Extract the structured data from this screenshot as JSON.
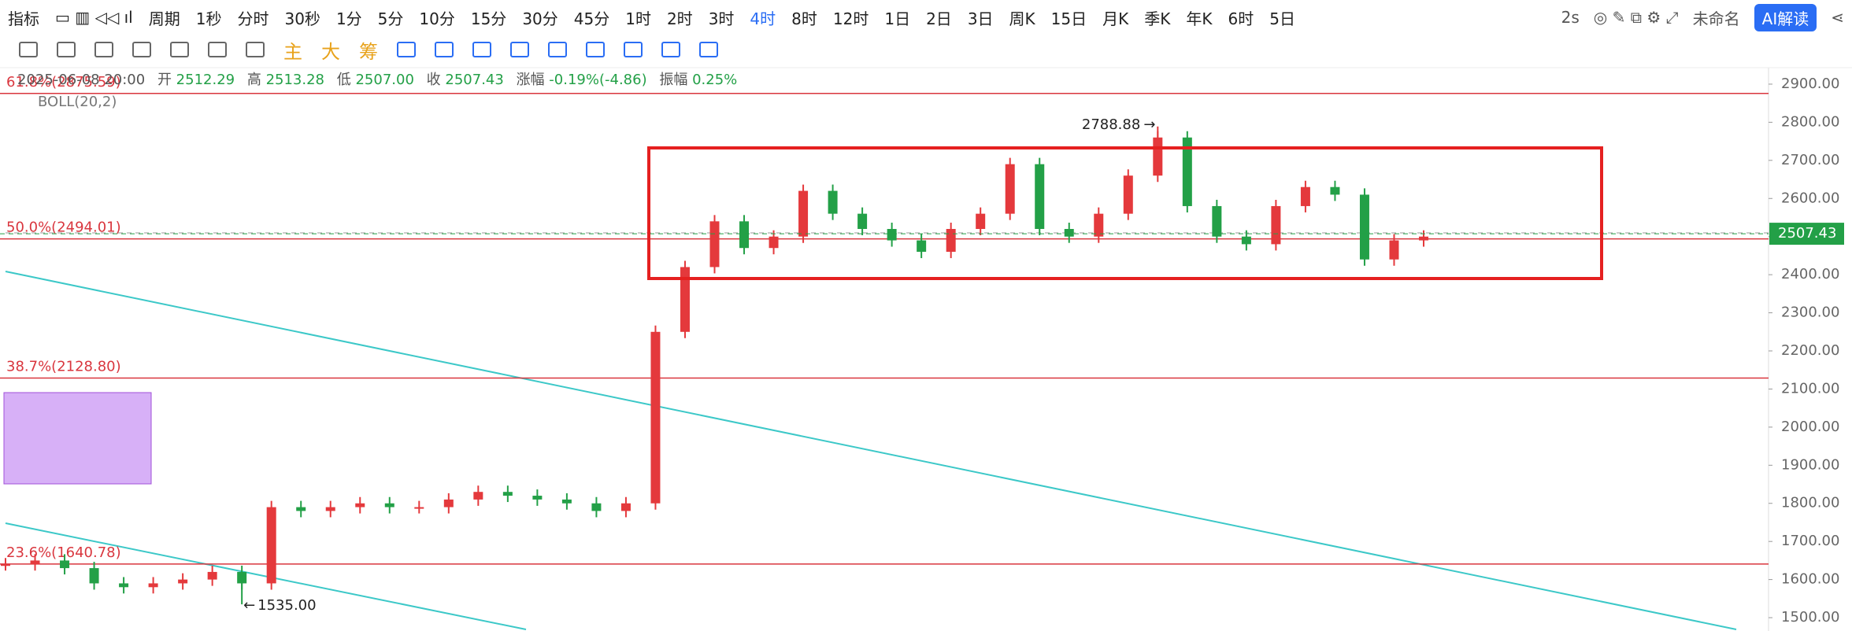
{
  "toolbar": {
    "indicator": "指标",
    "period": "周期",
    "intervals": [
      "1秒",
      "分时",
      "30秒",
      "1分",
      "5分",
      "10分",
      "15分",
      "30分",
      "45分",
      "1时",
      "2时",
      "3时",
      "4时",
      "8时",
      "12时",
      "1日",
      "2日",
      "3日",
      "周K",
      "15日",
      "月K",
      "季K",
      "年K",
      "6时",
      "5日"
    ],
    "active_interval": 12,
    "speed": "2s",
    "layout_name": "未命名",
    "ai_button": "AI解读"
  },
  "drawing_tools": {
    "labels": [
      "主",
      "大",
      "筹"
    ]
  },
  "info": {
    "datetime": "2025-06-08 20:00",
    "open_label": "开",
    "open": 2512.29,
    "high_label": "高",
    "high": 2513.28,
    "low_label": "低",
    "low": {
      "value": 2507,
      "label": "2507.00"
    },
    "close_label": "收",
    "close": 2507.43,
    "change_label": "涨幅",
    "change": "-0.19%(-4.86)",
    "amplitude_label": "振幅",
    "amplitude": "0.25%"
  },
  "indicator_legend": "BOLL(20,2)",
  "chart_data": {
    "type": "candlestick",
    "ylim": [
      1465,
      2935
    ],
    "yticks": [
      {
        "value": 1500,
        "label": "1500.00"
      },
      {
        "value": 1600,
        "label": "1600.00"
      },
      {
        "value": 1700,
        "label": "1700.00"
      },
      {
        "value": 1800,
        "label": "1800.00"
      },
      {
        "value": 1900,
        "label": "1900.00"
      },
      {
        "value": 2000,
        "label": "2000.00"
      },
      {
        "value": 2100,
        "label": "2100.00"
      },
      {
        "value": 2200,
        "label": "2200.00"
      },
      {
        "value": 2300,
        "label": "2300.00"
      },
      {
        "value": 2400,
        "label": "2400.00"
      },
      {
        "value": 2500,
        "label": "2500.00"
      },
      {
        "value": 2600,
        "label": "2600.00"
      },
      {
        "value": 2700,
        "label": "2700.00"
      },
      {
        "value": 2800,
        "label": "2800.00"
      },
      {
        "value": 2900,
        "label": "2900.00"
      }
    ],
    "values": [
      1640,
      1650,
      1630,
      1590,
      1580,
      1590,
      1600,
      1620,
      1590,
      1790,
      1780,
      1790,
      1800,
      1790,
      1790,
      1810,
      1830,
      1820,
      1810,
      1800,
      1780,
      1800,
      2250,
      2420,
      2540,
      2470,
      2500,
      2620,
      2560,
      2520,
      2490,
      2460,
      2520,
      2560,
      2690,
      2520,
      2500,
      2560,
      2660,
      2760,
      2580,
      2500,
      2480,
      2580,
      2630,
      2610,
      2440,
      2490,
      2500
    ],
    "up_color": "#e4393c",
    "down_color": "#23a047",
    "high_point": {
      "index": 39,
      "value": 2788.88
    },
    "low_point": {
      "index": 8,
      "value": {
        "value": 1535,
        "label": "1535.00"
      }
    },
    "fib_levels": [
      {
        "label": "61.8%(2875.59)",
        "value": 2875.59
      },
      {
        "label": "50.0%(2494.01)",
        "value": 2494.01
      },
      {
        "label": "38.7%(2128.80)",
        "value": 2128.8
      },
      {
        "label": "23.6%(1640.78)",
        "value": 1640.78
      }
    ],
    "fib_color": "#d9363e"
  }
}
